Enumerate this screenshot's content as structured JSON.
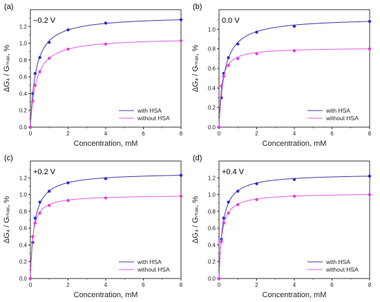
{
  "colors": {
    "with": "#2b2bd9",
    "without": "#e83ae8",
    "line_with": "#3a3aa0",
    "line_without": "#e05ae0"
  },
  "chart_data": [
    {
      "type": "line",
      "panel_label": "(a)",
      "voltage": "−0.2 V",
      "xlabel": "Concentration, mM",
      "ylabel": "ΔG₄ / Gₘₐₓ, %",
      "xlim": [
        0,
        8
      ],
      "ylim": [
        0.0,
        1.4
      ],
      "xticks": [
        "0",
        "2",
        "4",
        "6",
        "8"
      ],
      "yticks": [
        "0.0",
        "0.2",
        "0.4",
        "0.6",
        "0.8",
        "1.0",
        "1.2"
      ],
      "legend_position": "bottom-right",
      "grid": false,
      "series": [
        {
          "name": "with HSA",
          "x": [
            0,
            0.125,
            0.25,
            0.5,
            1,
            2,
            4,
            8
          ],
          "y": [
            0.0,
            0.4,
            0.64,
            0.83,
            1.01,
            1.16,
            1.24,
            1.28
          ]
        },
        {
          "name": "without HSA",
          "x": [
            0,
            0.125,
            0.25,
            0.5,
            1,
            2,
            4,
            8
          ],
          "y": [
            0.0,
            0.31,
            0.5,
            0.66,
            0.82,
            0.93,
            0.99,
            1.03
          ]
        }
      ]
    },
    {
      "type": "line",
      "panel_label": "(b)",
      "voltage": "0.0 V",
      "xlabel": "Concentration, mM",
      "ylabel": "ΔG₄ / Gₘₐₓ, %",
      "xlim": [
        0,
        8
      ],
      "ylim": [
        0.0,
        1.2
      ],
      "xticks": [
        "0",
        "2",
        "4",
        "6",
        "8"
      ],
      "yticks": [
        "0.0",
        "0.2",
        "0.4",
        "0.6",
        "0.8",
        "1.0"
      ],
      "legend_position": "bottom-right",
      "grid": false,
      "series": [
        {
          "name": "with HSA",
          "x": [
            0,
            0.125,
            0.25,
            0.5,
            1,
            2,
            4,
            8
          ],
          "y": [
            0.0,
            0.3,
            0.55,
            0.71,
            0.85,
            0.97,
            1.03,
            1.08
          ]
        },
        {
          "name": "without HSA",
          "x": [
            0,
            0.125,
            0.25,
            0.5,
            1,
            2,
            4,
            8
          ],
          "y": [
            0.0,
            0.42,
            0.52,
            0.63,
            0.7,
            0.75,
            0.78,
            0.8
          ]
        }
      ]
    },
    {
      "type": "line",
      "panel_label": "(c)",
      "voltage": "+0.2 V",
      "xlabel": "Concentration, mM",
      "ylabel": "ΔG₄ / Gₘₐₓ, %",
      "xlim": [
        0,
        8
      ],
      "ylim": [
        0.0,
        1.4
      ],
      "xticks": [
        "0",
        "2",
        "4",
        "6",
        "8"
      ],
      "yticks": [
        "0.0",
        "0.2",
        "0.4",
        "0.6",
        "0.8",
        "1.0",
        "1.2"
      ],
      "legend_position": "bottom-right",
      "grid": false,
      "series": [
        {
          "name": "with HSA",
          "x": [
            0,
            0.125,
            0.25,
            0.5,
            1,
            2,
            4,
            8
          ],
          "y": [
            0.0,
            0.43,
            0.72,
            0.91,
            1.04,
            1.14,
            1.19,
            1.23
          ]
        },
        {
          "name": "without HSA",
          "x": [
            0,
            0.125,
            0.25,
            0.5,
            1,
            2,
            4,
            8
          ],
          "y": [
            0.0,
            0.5,
            0.66,
            0.78,
            0.87,
            0.93,
            0.96,
            0.98
          ]
        }
      ]
    },
    {
      "type": "line",
      "panel_label": "(d)",
      "voltage": "+0.4 V",
      "xlabel": "Concentration, mM",
      "ylabel": "ΔG₄ / Gₘₐₓ, %",
      "xlim": [
        0,
        8
      ],
      "ylim": [
        0.0,
        1.4
      ],
      "xticks": [
        "0",
        "2",
        "4",
        "6",
        "8"
      ],
      "yticks": [
        "0.0",
        "0.2",
        "0.4",
        "0.6",
        "0.8",
        "1.0",
        "1.2"
      ],
      "legend_position": "bottom-right",
      "grid": false,
      "series": [
        {
          "name": "with HSA",
          "x": [
            0,
            0.125,
            0.25,
            0.5,
            1,
            2,
            4,
            8
          ],
          "y": [
            0.0,
            0.47,
            0.72,
            0.91,
            1.04,
            1.13,
            1.18,
            1.22
          ]
        },
        {
          "name": "without HSA",
          "x": [
            0,
            0.125,
            0.25,
            0.5,
            1,
            2,
            4,
            8
          ],
          "y": [
            0.0,
            0.44,
            0.66,
            0.78,
            0.88,
            0.94,
            0.98,
            1.0
          ]
        }
      ]
    }
  ]
}
